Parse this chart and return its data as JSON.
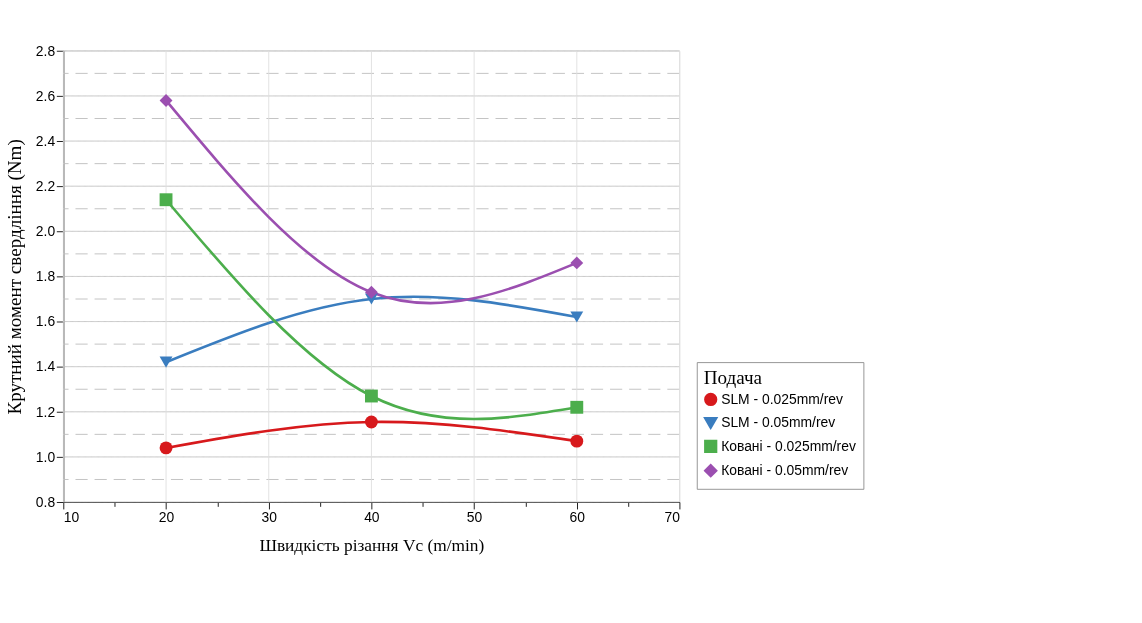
{
  "chart_data": {
    "type": "line",
    "xlabel": "Швидкість різання Vc (m/min)",
    "ylabel": "Крутний момент свердління (Nm)",
    "legend_title": "Подача",
    "x": [
      20,
      40,
      60
    ],
    "series": [
      {
        "name": "SLM - 0.025mm/rev",
        "color": "#d7191c",
        "marker": "circle",
        "values": [
          1.04,
          1.155,
          1.07
        ]
      },
      {
        "name": "SLM - 0.05mm/rev",
        "color": "#3a7dbf",
        "marker": "triangle-down",
        "values": [
          1.42,
          1.7,
          1.62
        ]
      },
      {
        "name": "Ковані - 0.025mm/rev",
        "color": "#4cae4c",
        "marker": "square",
        "values": [
          2.14,
          1.27,
          1.22
        ]
      },
      {
        "name": "Ковані - 0.05mm/rev",
        "color": "#9b4fb0",
        "marker": "diamond",
        "values": [
          2.58,
          1.73,
          1.86
        ]
      }
    ],
    "xlim": [
      10,
      70
    ],
    "xticks": [
      10,
      {
        "value": 15,
        "label": null
      },
      20,
      {
        "value": 25,
        "label": null
      },
      30,
      {
        "value": 35,
        "label": null
      },
      40,
      {
        "value": 45,
        "label": null
      },
      50,
      {
        "value": 55,
        "label": null
      },
      60,
      {
        "value": 65,
        "label": null
      },
      70
    ],
    "ylim": [
      0.8,
      2.8
    ],
    "yticks": [
      {
        "value": 0.8,
        "label": "0.8"
      },
      {
        "value": 0.9,
        "label": null
      },
      {
        "value": 1.0,
        "label": "1.0"
      },
      {
        "value": 1.1,
        "label": null
      },
      {
        "value": 1.2,
        "label": "1.2"
      },
      {
        "value": 1.3,
        "label": null
      },
      {
        "value": 1.4,
        "label": "1.4"
      },
      {
        "value": 1.5,
        "label": null
      },
      {
        "value": 1.6,
        "label": "1.6"
      },
      {
        "value": 1.7,
        "label": null
      },
      {
        "value": 1.8,
        "label": "1.8"
      },
      {
        "value": 1.9,
        "label": null
      },
      {
        "value": 2.0,
        "label": "2.0"
      },
      {
        "value": 2.1,
        "label": null
      },
      {
        "value": 2.2,
        "label": "2.2"
      },
      {
        "value": 2.3,
        "label": null
      },
      {
        "value": 2.4,
        "label": "2.4"
      },
      {
        "value": 2.5,
        "label": null
      },
      {
        "value": 2.6,
        "label": "2.6"
      },
      {
        "value": 2.7,
        "label": null
      },
      {
        "value": 2.8,
        "label": "2.8"
      }
    ],
    "grid": true,
    "legend": "right",
    "line_style": "solid"
  }
}
